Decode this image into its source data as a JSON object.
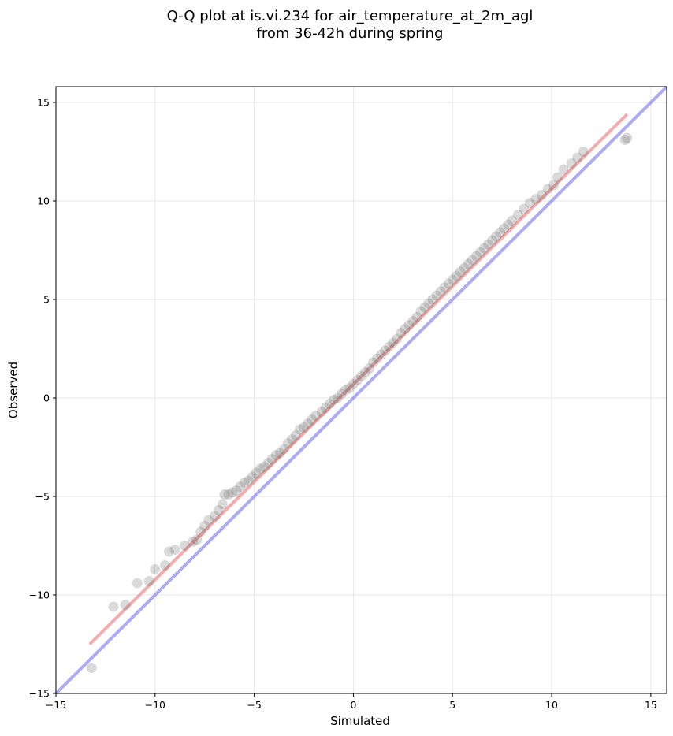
{
  "chart_data": {
    "type": "scatter",
    "title": "Q-Q plot at is.vi.234 for air_temperature_at_2m_agl",
    "subtitle": "from 36-42h during spring",
    "xlabel": "Simulated",
    "ylabel": "Observed",
    "xlim": [
      -15,
      15.8
    ],
    "ylim": [
      -15,
      15.8
    ],
    "xticks": [
      -15,
      -10,
      -5,
      0,
      5,
      10,
      15
    ],
    "yticks": [
      -15,
      -10,
      -5,
      0,
      5,
      10,
      15
    ],
    "xtick_labels": [
      "−15",
      "−10",
      "−5",
      "0",
      "5",
      "10",
      "15"
    ],
    "ytick_labels": [
      "−15",
      "−10",
      "−5",
      "0",
      "5",
      "10",
      "15"
    ],
    "grid": true,
    "colors": {
      "points": "#555555",
      "fit_line": "#f08080",
      "identity_line": "#8080f0"
    },
    "reference_lines": [
      {
        "kind": "identity",
        "x": [
          -15,
          15.8
        ],
        "y": [
          -15,
          15.8
        ]
      },
      {
        "kind": "fit",
        "x": [
          -13.3,
          13.8
        ],
        "y": [
          -12.5,
          14.4
        ]
      }
    ],
    "series": [
      {
        "x": [
          -13.2,
          -12.1,
          -11.5,
          -10.9,
          -10.3,
          -10.0,
          -9.5,
          -9.3,
          -9.0,
          -8.5,
          -8.1,
          -7.9,
          -7.7,
          -7.5,
          -7.3,
          -7.0,
          -6.8,
          -6.6,
          -6.5,
          -6.3,
          -6.1,
          -5.9,
          -5.7,
          -5.5,
          -5.3,
          -5.1,
          -4.9,
          -4.7,
          -4.5,
          -4.3,
          -4.1,
          -3.9,
          -3.7,
          -3.5,
          -3.3,
          -3.1,
          -2.9,
          -2.7,
          -2.5,
          -2.3,
          -2.1,
          -1.9,
          -1.6,
          -1.4,
          -1.2,
          -1.0,
          -0.8,
          -0.6,
          -0.4,
          -0.2,
          0.0,
          0.2,
          0.4,
          0.6,
          0.8,
          1.0,
          1.2,
          1.4,
          1.6,
          1.8,
          2.0,
          2.2,
          2.4,
          2.6,
          2.8,
          3.0,
          3.2,
          3.4,
          3.6,
          3.8,
          4.0,
          4.2,
          4.4,
          4.6,
          4.8,
          5.0,
          5.2,
          5.4,
          5.6,
          5.8,
          6.0,
          6.2,
          6.4,
          6.6,
          6.8,
          7.0,
          7.2,
          7.4,
          7.6,
          7.8,
          8.0,
          8.3,
          8.6,
          8.9,
          9.2,
          9.5,
          9.8,
          10.1,
          10.3,
          10.6,
          11.0,
          11.3,
          11.6,
          13.7,
          13.8
        ],
        "y": [
          -13.7,
          -10.6,
          -10.5,
          -9.4,
          -9.3,
          -8.7,
          -8.5,
          -7.8,
          -7.7,
          -7.5,
          -7.3,
          -7.2,
          -6.8,
          -6.5,
          -6.2,
          -6.0,
          -5.7,
          -5.4,
          -4.9,
          -4.9,
          -4.8,
          -4.7,
          -4.5,
          -4.3,
          -4.2,
          -4.0,
          -3.8,
          -3.6,
          -3.5,
          -3.3,
          -3.1,
          -2.9,
          -2.8,
          -2.6,
          -2.3,
          -2.1,
          -1.9,
          -1.6,
          -1.5,
          -1.3,
          -1.1,
          -0.9,
          -0.7,
          -0.5,
          -0.3,
          -0.1,
          0.0,
          0.2,
          0.4,
          0.5,
          0.7,
          0.9,
          1.1,
          1.3,
          1.5,
          1.8,
          2.0,
          2.2,
          2.4,
          2.6,
          2.8,
          3.0,
          3.3,
          3.5,
          3.7,
          3.9,
          4.1,
          4.4,
          4.6,
          4.8,
          5.0,
          5.2,
          5.4,
          5.6,
          5.8,
          6.0,
          6.2,
          6.4,
          6.6,
          6.8,
          7.0,
          7.2,
          7.4,
          7.6,
          7.8,
          8.0,
          8.2,
          8.4,
          8.6,
          8.8,
          9.0,
          9.3,
          9.6,
          9.9,
          10.1,
          10.3,
          10.6,
          10.8,
          11.2,
          11.6,
          11.9,
          12.2,
          12.5,
          13.1,
          13.2
        ]
      }
    ]
  }
}
